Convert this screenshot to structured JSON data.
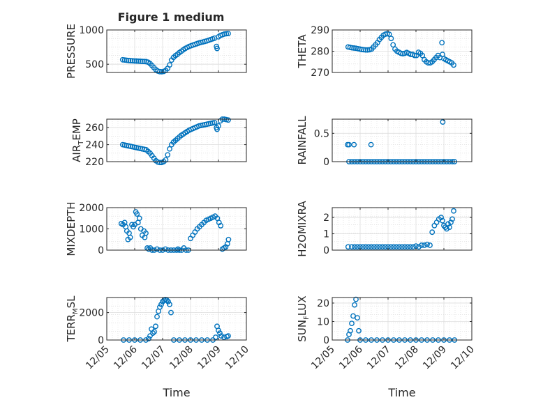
{
  "figure": {
    "title": "Figure 1 medium",
    "xlabel": "Time",
    "marker_color": "#0072bd"
  },
  "chart_data": [
    {
      "type": "scatter",
      "title": "Figure 1 medium",
      "xlabel": "",
      "ylabel": "PRESSURE",
      "ylabel_parts": [
        "PRESSURE"
      ],
      "xlim": [
        5.0,
        10.0
      ],
      "xticks": [
        5,
        6,
        7,
        8,
        9,
        10
      ],
      "xticklabels": [
        "12/05",
        "12/06",
        "12/07",
        "12/08",
        "12/09",
        "12/10"
      ],
      "show_xticklabels": false,
      "ylim": [
        380,
        1000
      ],
      "yticks": [
        500,
        1000
      ],
      "yticklabels": [
        "500",
        "1000"
      ],
      "grid": true,
      "x": [
        5.57,
        5.64,
        5.71,
        5.78,
        5.85,
        5.92,
        5.99,
        6.06,
        6.13,
        6.2,
        6.27,
        6.34,
        6.41,
        6.48,
        6.55,
        6.62,
        6.69,
        6.76,
        6.83,
        6.9,
        6.97,
        7.04,
        7.11,
        7.18,
        7.25,
        7.32,
        7.39,
        7.46,
        7.53,
        7.6,
        7.67,
        7.74,
        7.81,
        7.88,
        7.95,
        8.02,
        8.09,
        8.16,
        8.23,
        8.3,
        8.37,
        8.44,
        8.51,
        8.58,
        8.65,
        8.72,
        8.79,
        8.86,
        8.93,
        8.95,
        9.0,
        9.07,
        9.14,
        9.21,
        9.28,
        9.35
      ],
      "y": [
        565,
        562,
        558,
        554,
        552,
        550,
        548,
        547,
        545,
        543,
        541,
        540,
        538,
        530,
        510,
        480,
        450,
        420,
        400,
        392,
        390,
        395,
        410,
        440,
        490,
        560,
        600,
        625,
        645,
        670,
        690,
        710,
        730,
        745,
        760,
        770,
        780,
        790,
        800,
        810,
        818,
        825,
        832,
        840,
        850,
        860,
        870,
        880,
        760,
        730,
        900,
        920,
        930,
        940,
        945,
        948
      ]
    },
    {
      "type": "scatter",
      "xlabel": "",
      "ylabel": "THETA",
      "ylabel_parts": [
        "THETA"
      ],
      "xlim": [
        5.0,
        10.0
      ],
      "xticks": [
        5,
        6,
        7,
        8,
        9,
        10
      ],
      "xticklabels": [
        "12/05",
        "12/06",
        "12/07",
        "12/08",
        "12/09",
        "12/10"
      ],
      "show_xticklabels": false,
      "ylim": [
        270,
        290
      ],
      "yticks": [
        270,
        280,
        290
      ],
      "yticklabels": [
        "270",
        "280",
        "290"
      ],
      "grid": true,
      "x": [
        5.57,
        5.64,
        5.71,
        5.78,
        5.85,
        5.92,
        5.99,
        6.06,
        6.13,
        6.2,
        6.27,
        6.34,
        6.41,
        6.48,
        6.55,
        6.62,
        6.69,
        6.76,
        6.83,
        6.9,
        6.97,
        7.04,
        7.11,
        7.18,
        7.25,
        7.32,
        7.39,
        7.46,
        7.53,
        7.6,
        7.67,
        7.74,
        7.81,
        7.88,
        7.95,
        8.02,
        8.09,
        8.16,
        8.23,
        8.3,
        8.37,
        8.44,
        8.51,
        8.58,
        8.65,
        8.72,
        8.79,
        8.86,
        8.93,
        8.95,
        9.0,
        9.07,
        9.14,
        9.21,
        9.28,
        9.35
      ],
      "y": [
        282,
        281.8,
        281.6,
        281.5,
        281.4,
        281.2,
        281,
        280.8,
        280.7,
        280.6,
        280.6,
        280.7,
        281,
        282,
        283,
        284,
        285.5,
        286.5,
        287.5,
        288,
        288.3,
        288,
        286,
        283,
        281,
        280,
        279.5,
        279,
        278.8,
        279,
        279.4,
        279,
        278.5,
        278.5,
        278,
        278,
        279.5,
        279,
        278,
        276,
        275,
        274.5,
        274.5,
        275,
        276,
        277,
        278,
        277,
        284,
        278.5,
        276.5,
        276,
        275.5,
        275,
        274.5,
        273.5
      ]
    },
    {
      "type": "scatter",
      "xlabel": "",
      "ylabel": "AIR_TEMP",
      "ylabel_parts": [
        "AIR",
        "T",
        "EMP"
      ],
      "xlim": [
        5.0,
        10.0
      ],
      "xticks": [
        5,
        6,
        7,
        8,
        9,
        10
      ],
      "xticklabels": [
        "12/05",
        "12/06",
        "12/07",
        "12/08",
        "12/09",
        "12/10"
      ],
      "show_xticklabels": false,
      "ylim": [
        220,
        270
      ],
      "yticks": [
        220,
        240,
        260
      ],
      "yticklabels": [
        "220",
        "240",
        "260"
      ],
      "grid": true,
      "x": [
        5.57,
        5.64,
        5.71,
        5.78,
        5.85,
        5.92,
        5.99,
        6.06,
        6.13,
        6.2,
        6.27,
        6.34,
        6.41,
        6.48,
        6.55,
        6.62,
        6.69,
        6.76,
        6.83,
        6.9,
        6.97,
        7.04,
        7.11,
        7.18,
        7.25,
        7.32,
        7.39,
        7.46,
        7.53,
        7.6,
        7.67,
        7.74,
        7.81,
        7.88,
        7.95,
        8.02,
        8.09,
        8.16,
        8.23,
        8.3,
        8.37,
        8.44,
        8.51,
        8.58,
        8.65,
        8.72,
        8.79,
        8.86,
        8.93,
        8.95,
        9.0,
        9.07,
        9.14,
        9.21,
        9.28,
        9.35
      ],
      "y": [
        240,
        239.5,
        239,
        238.5,
        238,
        237.5,
        237,
        236.5,
        236,
        235.5,
        235,
        234.5,
        234,
        232,
        230,
        227,
        224,
        221,
        219.5,
        219,
        219,
        220,
        222,
        228,
        235,
        240,
        243,
        245,
        247,
        249,
        251,
        252.5,
        254,
        255.5,
        257,
        258,
        259,
        260,
        261,
        262,
        262.5,
        263,
        263.5,
        264,
        264.5,
        265,
        265.5,
        266,
        260,
        258,
        262,
        268,
        270,
        270,
        269.5,
        269
      ]
    },
    {
      "type": "scatter",
      "xlabel": "",
      "ylabel": "RAINFALL",
      "ylabel_parts": [
        "RAINFALL"
      ],
      "xlim": [
        5.0,
        10.0
      ],
      "xticks": [
        5,
        6,
        7,
        8,
        9,
        10
      ],
      "xticklabels": [
        "12/05",
        "12/06",
        "12/07",
        "12/08",
        "12/09",
        "12/10"
      ],
      "show_xticklabels": false,
      "ylim": [
        0,
        0.75
      ],
      "yticks": [
        0,
        0.5
      ],
      "yticklabels": [
        "0",
        "0.5"
      ],
      "grid": true,
      "x": [
        5.55,
        5.6,
        5.78,
        5.6,
        5.7,
        5.8,
        5.9,
        6.0,
        6.1,
        6.2,
        6.3,
        6.4,
        6.5,
        6.6,
        6.7,
        6.8,
        6.9,
        7.0,
        7.1,
        7.2,
        7.3,
        7.4,
        7.5,
        7.6,
        7.7,
        7.8,
        7.9,
        8.0,
        8.1,
        8.2,
        8.3,
        8.4,
        8.5,
        8.6,
        8.7,
        8.8,
        8.9,
        9.0,
        9.1,
        9.2,
        9.3,
        9.38,
        6.39,
        8.96
      ],
      "y": [
        0.3,
        0.3,
        0.3,
        0,
        0,
        0,
        0,
        0,
        0,
        0,
        0,
        0,
        0,
        0,
        0,
        0,
        0,
        0,
        0,
        0,
        0,
        0,
        0,
        0,
        0,
        0,
        0,
        0,
        0,
        0,
        0,
        0,
        0,
        0,
        0,
        0,
        0,
        0,
        0,
        0,
        0,
        0,
        0.3,
        0.7
      ]
    },
    {
      "type": "scatter",
      "xlabel": "",
      "ylabel": "MIXDEPTH",
      "ylabel_parts": [
        "MIXDEPTH"
      ],
      "xlim": [
        5.0,
        10.0
      ],
      "xticks": [
        5,
        6,
        7,
        8,
        9,
        10
      ],
      "xticklabels": [
        "12/05",
        "12/06",
        "12/07",
        "12/08",
        "12/09",
        "12/10"
      ],
      "show_xticklabels": false,
      "ylim": [
        0,
        2000
      ],
      "yticks": [
        0,
        1000,
        2000
      ],
      "yticklabels": [
        "0",
        "1000",
        "2000"
      ],
      "grid": true,
      "x": [
        5.52,
        5.58,
        5.64,
        5.68,
        5.72,
        5.76,
        5.8,
        5.84,
        5.9,
        5.95,
        6.0,
        6.04,
        6.08,
        6.12,
        6.17,
        6.22,
        6.27,
        6.33,
        6.36,
        6.4,
        6.45,
        6.5,
        6.56,
        6.62,
        6.7,
        6.8,
        6.9,
        7.0,
        7.1,
        7.2,
        7.3,
        7.4,
        7.5,
        7.55,
        7.6,
        7.68,
        7.76,
        7.84,
        7.92,
        8.0,
        8.08,
        8.16,
        8.24,
        8.32,
        8.4,
        8.48,
        8.56,
        8.64,
        8.72,
        8.8,
        8.88,
        8.96,
        9.02,
        9.08,
        9.14,
        9.2,
        9.26,
        9.32,
        9.36
      ],
      "y": [
        1250,
        1200,
        1300,
        1100,
        900,
        500,
        800,
        600,
        1200,
        1100,
        1200,
        1800,
        1700,
        1300,
        1500,
        1000,
        700,
        900,
        600,
        800,
        100,
        50,
        100,
        0,
        0,
        50,
        0,
        0,
        50,
        0,
        0,
        0,
        0,
        50,
        0,
        0,
        100,
        0,
        0,
        550,
        700,
        850,
        1000,
        1100,
        1200,
        1300,
        1400,
        1450,
        1500,
        1550,
        1600,
        1500,
        1300,
        1150,
        50,
        100,
        150,
        300,
        500
      ]
    },
    {
      "type": "scatter",
      "xlabel": "",
      "ylabel": "H2OMIXRA",
      "ylabel_parts": [
        "H2OMIXRA"
      ],
      "xlim": [
        5.0,
        10.0
      ],
      "xticks": [
        5,
        6,
        7,
        8,
        9,
        10
      ],
      "xticklabels": [
        "12/05",
        "12/06",
        "12/07",
        "12/08",
        "12/09",
        "12/10"
      ],
      "show_xticklabels": false,
      "ylim": [
        0,
        2.6
      ],
      "yticks": [
        0,
        1,
        2
      ],
      "yticklabels": [
        "0",
        "1",
        "2"
      ],
      "grid": true,
      "x": [
        5.57,
        5.7,
        5.8,
        5.9,
        6.0,
        6.1,
        6.2,
        6.3,
        6.4,
        6.5,
        6.6,
        6.7,
        6.8,
        6.9,
        7.0,
        7.1,
        7.2,
        7.3,
        7.4,
        7.5,
        7.6,
        7.7,
        7.8,
        7.9,
        8.0,
        8.1,
        8.2,
        8.3,
        8.4,
        8.5,
        8.58,
        8.66,
        8.74,
        8.82,
        8.9,
        8.95,
        9.0,
        9.05,
        9.1,
        9.15,
        9.2,
        9.25,
        9.3,
        9.35
      ],
      "y": [
        0.2,
        0.2,
        0.2,
        0.2,
        0.2,
        0.2,
        0.2,
        0.2,
        0.2,
        0.2,
        0.2,
        0.2,
        0.2,
        0.2,
        0.2,
        0.2,
        0.2,
        0.2,
        0.2,
        0.2,
        0.2,
        0.2,
        0.2,
        0.2,
        0.25,
        0.2,
        0.3,
        0.3,
        0.35,
        0.3,
        1.1,
        1.5,
        1.7,
        1.9,
        2.0,
        1.8,
        1.5,
        1.4,
        1.3,
        1.6,
        1.4,
        1.7,
        1.9,
        2.4
      ]
    },
    {
      "type": "scatter",
      "xlabel": "Time",
      "ylabel": "TERR_MSL",
      "ylabel_parts": [
        "TERR",
        "M",
        "SL"
      ],
      "xlim": [
        5.0,
        10.0
      ],
      "xticks": [
        5,
        6,
        7,
        8,
        9,
        10
      ],
      "xticklabels": [
        "12/05",
        "12/06",
        "12/07",
        "12/08",
        "12/09",
        "12/10"
      ],
      "show_xticklabels": true,
      "ylim": [
        0,
        3100
      ],
      "yticks": [
        0,
        2000
      ],
      "yticklabels": [
        "0",
        "2000"
      ],
      "grid": true,
      "x": [
        5.6,
        5.8,
        6.0,
        6.2,
        6.4,
        6.5,
        6.55,
        6.6,
        6.65,
        6.7,
        6.75,
        6.8,
        6.85,
        6.9,
        6.95,
        7.0,
        7.05,
        7.1,
        7.15,
        7.2,
        7.25,
        7.3,
        7.4,
        7.6,
        7.8,
        8.0,
        8.2,
        8.4,
        8.6,
        8.8,
        8.9,
        8.95,
        9.0,
        9.05,
        9.1,
        9.2,
        9.3,
        9.35
      ],
      "y": [
        0,
        0,
        0,
        0,
        0,
        100,
        300,
        800,
        500,
        600,
        1000,
        1700,
        2100,
        2400,
        2600,
        2800,
        2900,
        2950,
        2900,
        2800,
        2600,
        2000,
        0,
        0,
        0,
        0,
        0,
        0,
        0,
        0,
        200,
        1000,
        700,
        500,
        300,
        200,
        250,
        300
      ]
    },
    {
      "type": "scatter",
      "xlabel": "Time",
      "ylabel": "SUN_FLUX",
      "ylabel_parts": [
        "SUN",
        "F",
        "LUX"
      ],
      "xlim": [
        5.0,
        10.0
      ],
      "xticks": [
        5,
        6,
        7,
        8,
        9,
        10
      ],
      "xticklabels": [
        "12/05",
        "12/06",
        "12/07",
        "12/08",
        "12/09",
        "12/10"
      ],
      "show_xticklabels": true,
      "ylim": [
        0,
        23
      ],
      "yticks": [
        0,
        10,
        20
      ],
      "yticklabels": [
        "0",
        "10",
        "20"
      ],
      "grid": true,
      "x": [
        5.55,
        5.6,
        5.65,
        5.7,
        5.75,
        5.8,
        5.85,
        5.9,
        5.95,
        6.0,
        6.2,
        6.4,
        6.6,
        6.8,
        7.0,
        7.2,
        7.4,
        7.6,
        7.8,
        8.0,
        8.2,
        8.4,
        8.6,
        8.8,
        9.0,
        9.2,
        9.38
      ],
      "y": [
        0,
        3,
        5,
        9,
        13,
        19,
        22,
        12,
        5,
        0,
        0,
        0,
        0,
        0,
        0,
        0,
        0,
        0,
        0,
        0,
        0,
        0,
        0,
        0,
        0,
        0,
        0
      ]
    }
  ]
}
